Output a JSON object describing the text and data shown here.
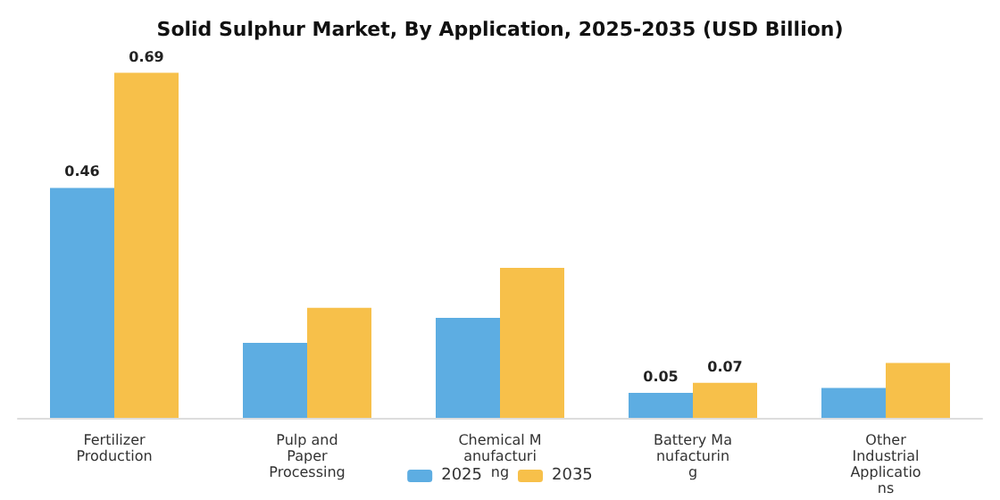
{
  "chart_data": {
    "type": "bar",
    "title": "Solid Sulphur Market, By Application, 2025-2035 (USD Billion)",
    "categories": [
      "Fertilizer\nProduction",
      "Pulp and\nPaper\nProcessing",
      "Chemical M\nanufacturi\nng",
      "Battery Ma\nnufacturin\ng",
      "Other\nIndustrial\nApplicatio\nns"
    ],
    "series": [
      {
        "name": "2025",
        "color": "#5dade2",
        "values": [
          0.46,
          0.15,
          0.2,
          0.05,
          0.06
        ],
        "value_labels": [
          "0.46",
          null,
          null,
          "0.05",
          null
        ]
      },
      {
        "name": "2035",
        "color": "#f7c04a",
        "values": [
          0.69,
          0.22,
          0.3,
          0.07,
          0.11
        ],
        "value_labels": [
          "0.69",
          null,
          null,
          "0.07",
          null
        ]
      }
    ],
    "legend": "bottom"
  }
}
